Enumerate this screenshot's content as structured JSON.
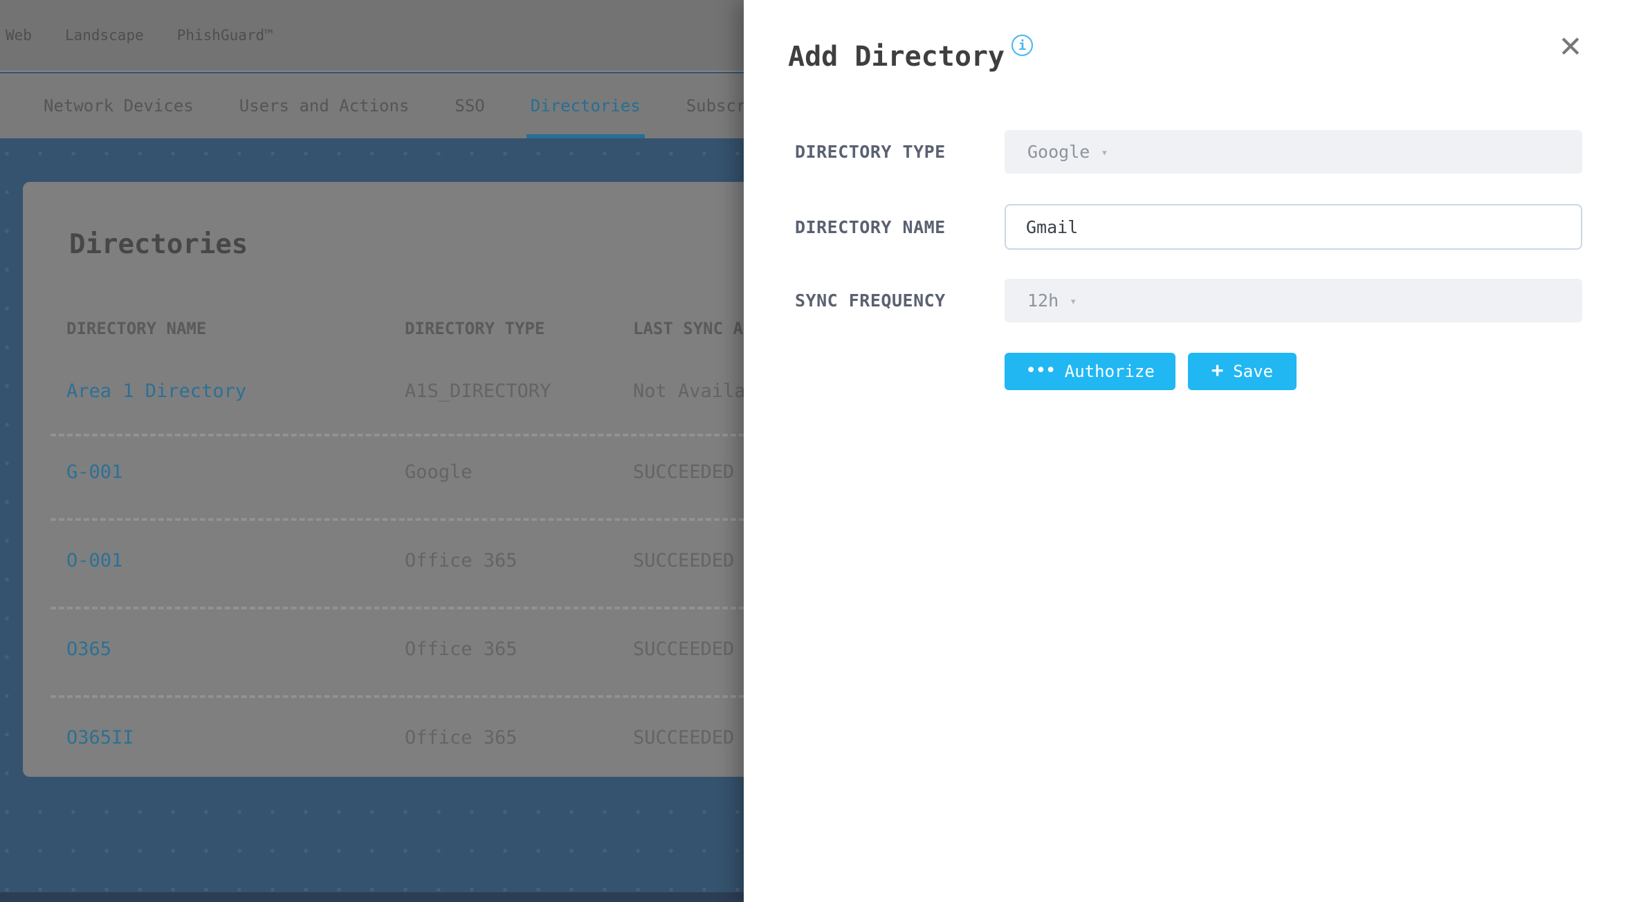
{
  "colors": {
    "accent": "#20B7F3",
    "accent_dimmed": "#286E96",
    "link_dimmed": "#2D7094",
    "page_bg": "#35536E",
    "modal_bg": "#FFFFFF",
    "field_bg": "#EFF1F4",
    "field_border": "#CBD7E2"
  },
  "icons": {
    "close": "✕",
    "info": "i",
    "caret": "▾",
    "authorize_dots": "•••",
    "save_plus": "+"
  },
  "page": {
    "top_nav": {
      "items": [
        {
          "label": "Web"
        },
        {
          "label": "Landscape"
        },
        {
          "label": "PhishGuard™"
        }
      ]
    },
    "tabs": [
      {
        "label": "Network Devices"
      },
      {
        "label": "Users and Actions"
      },
      {
        "label": "SSO"
      },
      {
        "label": "Directories",
        "active": true
      },
      {
        "label": "Subscri"
      }
    ],
    "panel": {
      "title": "Directories",
      "table": {
        "columns": [
          "DIRECTORY NAME",
          "DIRECTORY TYPE",
          "LAST SYNC A"
        ],
        "rows": [
          {
            "name": "Area 1 Directory",
            "type": "A1S_DIRECTORY",
            "last_sync": "Not Availa"
          },
          {
            "name": "G-001",
            "type": "Google",
            "last_sync": "SUCCEEDED"
          },
          {
            "name": "O-001",
            "type": "Office 365",
            "last_sync": "SUCCEEDED"
          },
          {
            "name": "O365",
            "type": "Office 365",
            "last_sync": "SUCCEEDED"
          },
          {
            "name": "O365II",
            "type": "Office 365",
            "last_sync": "SUCCEEDED"
          }
        ]
      }
    }
  },
  "modal": {
    "title": "Add Directory",
    "fields": [
      {
        "label": "DIRECTORY TYPE",
        "type": "select",
        "value": "Google"
      },
      {
        "label": "DIRECTORY NAME",
        "type": "text",
        "value": "Gmail"
      },
      {
        "label": "SYNC FREQUENCY",
        "type": "select",
        "value": "12h"
      }
    ],
    "buttons": [
      {
        "label": "Authorize"
      },
      {
        "label": "Save"
      }
    ]
  }
}
